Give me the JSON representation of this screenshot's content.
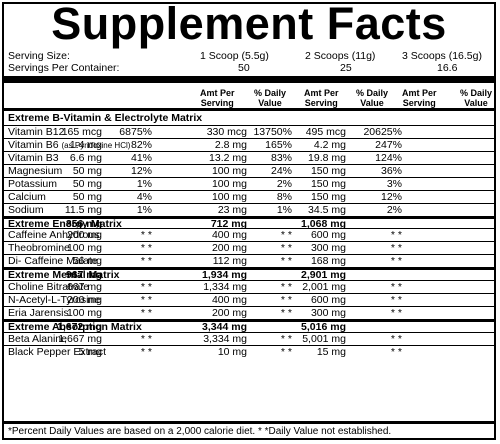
{
  "title": "Supplement Facts",
  "serving": {
    "size_label": "Serving Size:",
    "per_container_label": "Servings Per Container:",
    "columns": [
      {
        "size": "1 Scoop (5.5g)",
        "servings": "50"
      },
      {
        "size": "2 Scoops (11g)",
        "servings": "25"
      },
      {
        "size": "3 Scoops (16.5g)",
        "servings": "16.6"
      }
    ]
  },
  "headers": {
    "amt_per_serving": [
      "Amt Per",
      "Serving"
    ],
    "daily_value": [
      "% Daily",
      "Value"
    ]
  },
  "rows": [
    {
      "type": "matrix-head",
      "name": "Extreme B-Vitamin & Electrolyte Matrix",
      "first": true
    },
    {
      "type": "item",
      "name": "Vitamin B12",
      "v": [
        "165 mcg",
        "6875%",
        "330 mcg",
        "13750%",
        "495 mcg",
        "20625%"
      ]
    },
    {
      "type": "item",
      "name": "Vitamin B6",
      "note": "(as Pyridoxine HCl)",
      "v": [
        "1.4 mg",
        "82%",
        "2.8 mg",
        "165%",
        "4.2 mg",
        "247%"
      ]
    },
    {
      "type": "item",
      "name": "Vitamin B3",
      "v": [
        "6.6 mg",
        "41%",
        "13.2 mg",
        "83%",
        "19.8 mg",
        "124%"
      ]
    },
    {
      "type": "item",
      "name": "Magnesium",
      "v": [
        "50 mg",
        "12%",
        "100 mg",
        "24%",
        "150 mg",
        "36%"
      ]
    },
    {
      "type": "item",
      "name": "Potassium",
      "v": [
        "50 mg",
        "1%",
        "100 mg",
        "2%",
        "150 mg",
        "3%"
      ]
    },
    {
      "type": "item",
      "name": "Calcium",
      "v": [
        "50 mg",
        "4%",
        "100 mg",
        "8%",
        "150 mg",
        "12%"
      ]
    },
    {
      "type": "item",
      "name": "Sodium",
      "v": [
        "11.5 mg",
        "1%",
        "23 mg",
        "1%",
        "34.5 mg",
        "2%"
      ]
    },
    {
      "type": "section",
      "name": "Extreme Energy Matrix",
      "v": [
        "356 mg",
        "",
        "712 mg",
        "",
        "1,068 mg",
        ""
      ]
    },
    {
      "type": "item",
      "name": "Caffeine Anhydrous",
      "v": [
        "200 mg",
        "* *",
        "400 mg",
        "* *",
        "600 mg",
        "* *"
      ]
    },
    {
      "type": "item",
      "name": "Theobromine",
      "v": [
        "100 mg",
        "* *",
        "200 mg",
        "* *",
        "300 mg",
        "* *"
      ]
    },
    {
      "type": "item",
      "name": "Di- Caffeine Malate",
      "v": [
        "56 mg",
        "* *",
        "112 mg",
        "* *",
        "168 mg",
        "* *"
      ]
    },
    {
      "type": "section",
      "name": "Extreme Mental Matrix",
      "v": [
        "967 mg",
        "",
        "1,934 mg",
        "",
        "2,901 mg",
        ""
      ]
    },
    {
      "type": "item",
      "name": "Choline Bitratrate",
      "v": [
        "667 mg",
        "* *",
        "1,334 mg",
        "* *",
        "2,001 mg",
        "* *"
      ]
    },
    {
      "type": "item",
      "name": "N-Acetyl-L-Tyrosine",
      "v": [
        "200 mg",
        "* *",
        "400 mg",
        "* *",
        "600 mg",
        "* *"
      ]
    },
    {
      "type": "item",
      "name": "Eria Jarensis",
      "v": [
        "100 mg",
        "* *",
        "200 mg",
        "* *",
        "300 mg",
        "* *"
      ]
    },
    {
      "type": "section",
      "name": "Extreme Absorption Matrix",
      "v": [
        "1,672 mg",
        "",
        "3,344 mg",
        "",
        "5,016 mg",
        ""
      ]
    },
    {
      "type": "item",
      "name": "Beta Alanine",
      "v": [
        "1,667 mg",
        "* *",
        "3,334 mg",
        "* *",
        "5,001 mg",
        "* *"
      ]
    },
    {
      "type": "item",
      "name": "Black Pepper Extract",
      "v": [
        "5 mg",
        "* *",
        "10 mg",
        "* *",
        "15 mg",
        "* *"
      ]
    }
  ],
  "footnote": "*Percent Daily Values are based on a 2,000 calorie diet. * *Daily Value not established."
}
